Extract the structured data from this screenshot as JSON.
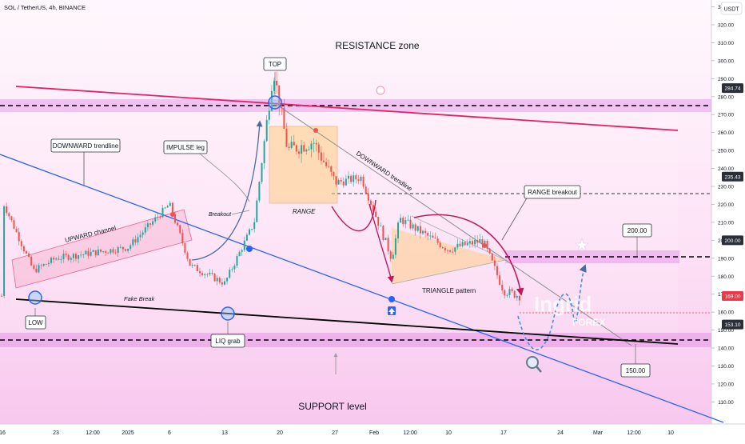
{
  "header": {
    "symbol_line": "SOL / TetherUS, 4h, BINANCE",
    "currency": "USDT"
  },
  "colors": {
    "up_candle": "#26a69a",
    "down_candle": "#ef5350",
    "highlight_band": "#e040fb",
    "resistance_line": "#e91e63",
    "support_trendline": "#2962ff",
    "black_line": "#000000",
    "range_box": "#ffcc80",
    "current_price_tag": "#f23645"
  },
  "price_axis": {
    "ticks": [
      "330.00",
      "320.00",
      "310.00",
      "300.00",
      "290.00",
      "280.00",
      "270.00",
      "260.00",
      "250.00",
      "240.00",
      "230.00",
      "220.00",
      "210.00",
      "200.00",
      "190.00",
      "180.00",
      "170.00",
      "160.00",
      "150.00",
      "140.00",
      "130.00",
      "120.00",
      "110.00"
    ],
    "tags": [
      {
        "label": "284.74",
        "color": "#2a2e39"
      },
      {
        "label": "235.43",
        "color": "#2a2e39"
      },
      {
        "label": "200.00",
        "color": "#2a2e39"
      },
      {
        "label": "169.00",
        "color": "#f23645"
      },
      {
        "label": "153.10",
        "color": "#2a2e39"
      }
    ]
  },
  "time_axis": [
    "16",
    "23",
    "12:00",
    "2025",
    "6",
    "13",
    "20",
    "27",
    "Feb",
    "12:00",
    "10",
    "17",
    "24",
    "Mar",
    "12:00",
    "10"
  ],
  "annotations": {
    "resistance_zone": "RESISTANCE zone",
    "support_level": "SUPPORT level",
    "top": "TOP",
    "low": "LOW",
    "liq_grab": "LIQ grab",
    "downward_trendline_box": "DOWNWARD trendline",
    "downward_trendline_text": "DOWNWARD trendline",
    "impulse_leg": "IMPULSE leg",
    "breakout": "Breakout",
    "upward_channel": "UPWARD channel",
    "fake_break": "Fake Break",
    "range": "RANGE",
    "range_breakout": "RANGE breakout",
    "triangle_pattern": "TRIANGLE pattern",
    "target_200": "200.00",
    "target_150": "150.00"
  },
  "watermark": {
    "line1": "Ingrid",
    "line2": "FOREX"
  },
  "chart_data": {
    "type": "candlestick",
    "title": "SOL / TetherUS, 4h, BINANCE",
    "y_unit": "USDT",
    "ylim": [
      104,
      338
    ],
    "y_ticks": [
      110,
      120,
      130,
      140,
      150,
      160,
      170,
      180,
      190,
      200,
      210,
      220,
      230,
      240,
      250,
      260,
      270,
      280,
      290,
      300,
      310,
      320,
      330
    ],
    "x_ticks": [
      "16",
      "23",
      "12:00",
      "2025",
      "6",
      "13",
      "20",
      "27",
      "Feb",
      "12:00",
      "10",
      "17",
      "24",
      "Mar",
      "12:00",
      "10"
    ],
    "price_path": [
      {
        "t": "Dec 16",
        "close": 222
      },
      {
        "t": "Dec 20",
        "close": 183
      },
      {
        "t": "Dec 23",
        "close": 190
      },
      {
        "t": "Jan 1",
        "close": 196
      },
      {
        "t": "Jan 6",
        "close": 220
      },
      {
        "t": "Jan 9",
        "close": 186
      },
      {
        "t": "Jan 13",
        "close": 176
      },
      {
        "t": "Jan 17",
        "close": 210
      },
      {
        "t": "Jan 19",
        "close": 295
      },
      {
        "t": "Jan 21",
        "close": 250
      },
      {
        "t": "Jan 24",
        "close": 255
      },
      {
        "t": "Jan 27",
        "close": 232
      },
      {
        "t": "Jan 30",
        "close": 235
      },
      {
        "t": "Feb 3",
        "close": 190
      },
      {
        "t": "Feb 4",
        "close": 212
      },
      {
        "t": "Feb 10",
        "close": 195
      },
      {
        "t": "Feb 14",
        "close": 200
      },
      {
        "t": "Feb 17",
        "close": 172
      },
      {
        "t": "Feb 18",
        "close": 169
      }
    ],
    "levels": [
      {
        "name": "RESISTANCE zone",
        "value": 284.74
      },
      {
        "name": "RANGE breakout",
        "value": 235.43
      },
      {
        "name": "target",
        "value": 200.0
      },
      {
        "name": "last price",
        "value": 169.0
      },
      {
        "name": "SUPPORT level",
        "value": 153.1
      },
      {
        "name": "target",
        "value": 150.0
      }
    ]
  }
}
